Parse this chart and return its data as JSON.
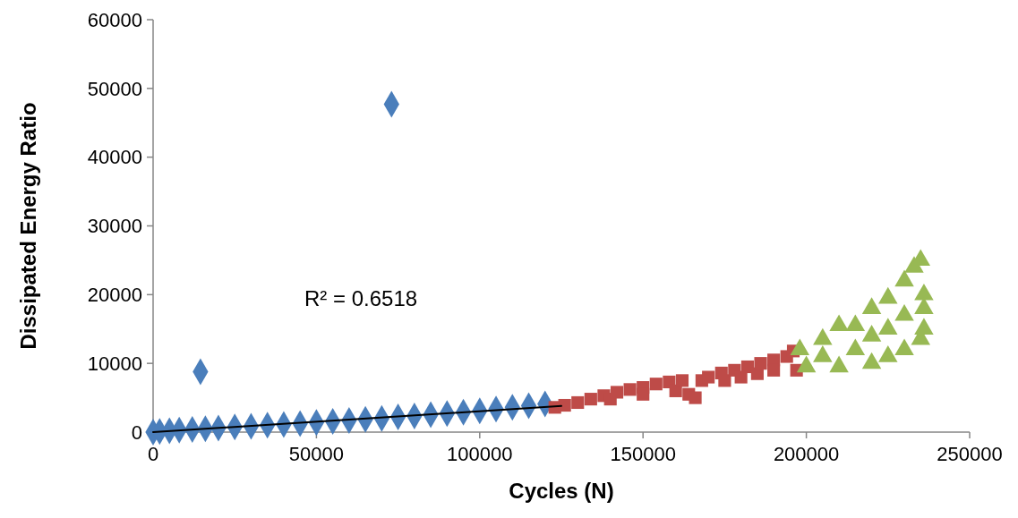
{
  "chart_data": {
    "type": "scatter",
    "xlabel": "Cycles (N)",
    "ylabel": "Dissipated Energy Ratio",
    "xlim": [
      0,
      250000
    ],
    "xticks": [
      0,
      50000,
      100000,
      150000,
      200000,
      250000
    ],
    "ylim": [
      0,
      60000
    ],
    "yticks": [
      0,
      10000,
      20000,
      30000,
      40000,
      50000,
      60000
    ],
    "grid": false,
    "annotations": [
      "R² = 0.6518"
    ],
    "series": [
      {
        "marker": "diamond",
        "color": "#4a7ebb",
        "x": [
          0,
          2000,
          5000,
          8000,
          12000,
          14500,
          16000,
          20000,
          25000,
          30000,
          35000,
          40000,
          45000,
          50000,
          55000,
          60000,
          65000,
          70000,
          73000,
          75000,
          80000,
          85000,
          90000,
          95000,
          100000,
          105000,
          110000,
          115000,
          120000
        ],
        "values": [
          0,
          100,
          200,
          300,
          400,
          8800,
          500,
          600,
          750,
          850,
          1000,
          1100,
          1250,
          1400,
          1550,
          1700,
          1850,
          2000,
          47700,
          2200,
          2350,
          2550,
          2700,
          2900,
          3100,
          3350,
          3600,
          3850,
          4100
        ]
      },
      {
        "marker": "square",
        "color": "#be4b48",
        "x": [
          123000,
          126000,
          130000,
          134000,
          138000,
          140000,
          142000,
          146000,
          150000,
          150000,
          154000,
          158000,
          160000,
          162000,
          164000,
          166000,
          168000,
          170000,
          174000,
          175000,
          178000,
          180000,
          182000,
          185000,
          186000,
          190000,
          190000,
          194000,
          196000,
          197000
        ],
        "values": [
          3600,
          3900,
          4300,
          4800,
          5300,
          4800,
          5800,
          6200,
          6500,
          5500,
          7000,
          7300,
          6000,
          7500,
          5500,
          5000,
          7500,
          8000,
          8600,
          7500,
          9000,
          8000,
          9500,
          8500,
          10000,
          10500,
          9000,
          11000,
          11800,
          9000
        ]
      },
      {
        "marker": "triangle",
        "color": "#98b954",
        "x": [
          198000,
          200000,
          205000,
          205000,
          210000,
          210000,
          215000,
          215000,
          220000,
          220000,
          220000,
          225000,
          225000,
          225000,
          230000,
          230000,
          230000,
          233000,
          235000,
          235000,
          236000,
          236000,
          236000
        ],
        "values": [
          12000,
          9500,
          13500,
          11000,
          15500,
          9500,
          15500,
          12000,
          18000,
          14000,
          10000,
          19500,
          15000,
          11000,
          22000,
          17000,
          12000,
          24000,
          25000,
          13500,
          20000,
          18000,
          15000
        ]
      },
      {
        "type": "line",
        "marker": "none",
        "color": "#000000",
        "x": [
          0,
          125000
        ],
        "values": [
          0,
          3800
        ]
      }
    ]
  }
}
